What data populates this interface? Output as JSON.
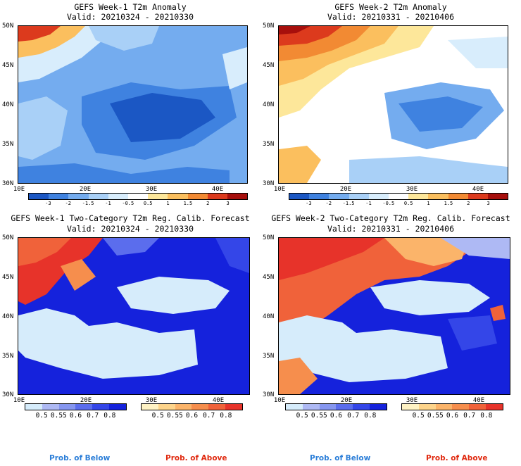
{
  "panels": [
    {
      "title": "GEFS Week-1 T2m Anomaly",
      "valid": "Valid: 20210324 - 20210330"
    },
    {
      "title": "GEFS Week-2 T2m Anomaly",
      "valid": "Valid: 20210331 - 20210406"
    },
    {
      "title": "GEFS Week-1 Two-Category T2m Reg. Calib. Forecast",
      "valid": "Valid: 20210324 - 20210330"
    },
    {
      "title": "GEFS Week-2 Two-Category T2m Reg. Calib. Forecast",
      "valid": "Valid: 20210331 - 20210406"
    }
  ],
  "axes": {
    "lat_labels": [
      "50N",
      "45N",
      "40N",
      "35N",
      "30N"
    ],
    "lon_labels": [
      "10E",
      "20E",
      "30E",
      "40E"
    ]
  },
  "anomaly_colorbar": {
    "labels": [
      "-3",
      "-2",
      "-1.5",
      "-1",
      "-0.5",
      "0.5",
      "1",
      "1.5",
      "2",
      "3"
    ],
    "colors": [
      "#1b57c4",
      "#3f82e0",
      "#74acef",
      "#a9d0f7",
      "#d8edfc",
      "#ffffff",
      "#fde79a",
      "#fbbf5e",
      "#f28a33",
      "#dc3a1d",
      "#a70f0c"
    ]
  },
  "prob_colorbar": {
    "labels": [
      "0.5",
      "0.55",
      "0.6",
      "0.7",
      "0.8"
    ],
    "below_colors": [
      "#d6ecfb",
      "#aeb9f4",
      "#8696ef",
      "#5b6ded",
      "#3446e8",
      "#1522dc"
    ],
    "above_colors": [
      "#fef2c4",
      "#fdd48b",
      "#fbb46a",
      "#f68e4d",
      "#f0623a",
      "#e7332a"
    ]
  },
  "legend": {
    "below": "Prob. of Below",
    "above": "Prob. of Above",
    "below_color": "#2b7ed8",
    "above_color": "#e02a10"
  }
}
